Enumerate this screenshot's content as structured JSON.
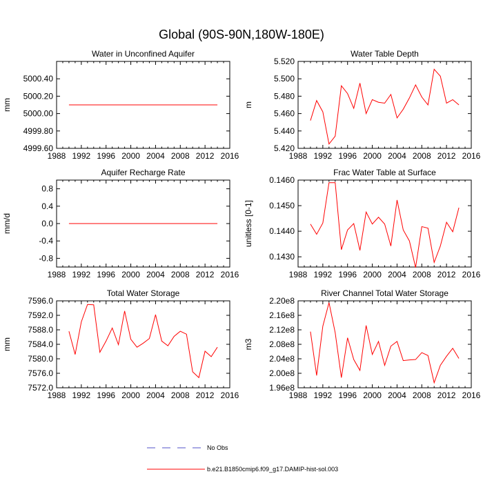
{
  "figure": {
    "title": "Global (90S-90N,180W-180E)"
  },
  "colors": {
    "series_line": "#ff0000",
    "no_obs_line": "#5050c8",
    "axis": "#000000",
    "background": "#ffffff"
  },
  "legend": {
    "entries": [
      {
        "label": "No Obs",
        "color": "#5050c8",
        "dash": true
      },
      {
        "label": "b.e21.B1850cmip6.f09_g17.DAMIP-hist-sol.003",
        "color": "#ff0000",
        "dash": false
      }
    ]
  },
  "chart_data": [
    {
      "type": "line",
      "title": "Water in Unconfined Aquifer",
      "xlabel": "",
      "ylabel": "mm",
      "xlim": [
        1988,
        2016
      ],
      "ylim": [
        4999.6,
        5000.6
      ],
      "xticks": [
        1988,
        1992,
        1996,
        2000,
        2004,
        2008,
        2012,
        2016
      ],
      "yticks": [
        4999.6,
        4999.8,
        5000.0,
        5000.2,
        5000.4
      ],
      "yticklabels": [
        "4999.60",
        "4999.80",
        "5000.00",
        "5000.20",
        "5000.40"
      ],
      "x": [
        1990,
        1991,
        1992,
        1993,
        1994,
        1995,
        1996,
        1997,
        1998,
        1999,
        2000,
        2001,
        2002,
        2003,
        2004,
        2005,
        2006,
        2007,
        2008,
        2009,
        2010,
        2011,
        2012,
        2013,
        2014
      ],
      "series": [
        {
          "values": [
            5000.1,
            5000.1,
            5000.1,
            5000.1,
            5000.1,
            5000.1,
            5000.1,
            5000.1,
            5000.1,
            5000.1,
            5000.1,
            5000.1,
            5000.1,
            5000.1,
            5000.1,
            5000.1,
            5000.1,
            5000.1,
            5000.1,
            5000.1,
            5000.1,
            5000.1,
            5000.1,
            5000.1,
            5000.1
          ]
        }
      ]
    },
    {
      "type": "line",
      "title": "Water Table Depth",
      "xlabel": "",
      "ylabel": "m",
      "xlim": [
        1988,
        2016
      ],
      "ylim": [
        5.42,
        5.52
      ],
      "xticks": [
        1988,
        1992,
        1996,
        2000,
        2004,
        2008,
        2012,
        2016
      ],
      "yticks": [
        5.42,
        5.44,
        5.46,
        5.48,
        5.5,
        5.52
      ],
      "yticklabels": [
        "5.420",
        "5.440",
        "5.460",
        "5.480",
        "5.500",
        "5.520"
      ],
      "x": [
        1990,
        1991,
        1992,
        1993,
        1994,
        1995,
        1996,
        1997,
        1998,
        1999,
        2000,
        2001,
        2002,
        2003,
        2004,
        2005,
        2006,
        2007,
        2008,
        2009,
        2010,
        2011,
        2012,
        2013,
        2014
      ],
      "series": [
        {
          "values": [
            5.452,
            5.475,
            5.462,
            5.425,
            5.434,
            5.492,
            5.483,
            5.466,
            5.495,
            5.46,
            5.476,
            5.473,
            5.472,
            5.482,
            5.455,
            5.465,
            5.478,
            5.493,
            5.479,
            5.47,
            5.511,
            5.503,
            5.472,
            5.476,
            5.47
          ]
        }
      ]
    },
    {
      "type": "line",
      "title": "Aquifer Recharge Rate",
      "xlabel": "",
      "ylabel": "mm/d",
      "xlim": [
        1988,
        2016
      ],
      "ylim": [
        -1.0,
        1.0
      ],
      "xticks": [
        1988,
        1992,
        1996,
        2000,
        2004,
        2008,
        2012,
        2016
      ],
      "yticks": [
        -0.8,
        -0.4,
        0.0,
        0.4,
        0.8
      ],
      "yticklabels": [
        "-0.8",
        "-0.4",
        "0.0",
        "0.4",
        "0.8"
      ],
      "x": [
        1990,
        1991,
        1992,
        1993,
        1994,
        1995,
        1996,
        1997,
        1998,
        1999,
        2000,
        2001,
        2002,
        2003,
        2004,
        2005,
        2006,
        2007,
        2008,
        2009,
        2010,
        2011,
        2012,
        2013,
        2014
      ],
      "series": [
        {
          "values": [
            0,
            0,
            0,
            0,
            0,
            0,
            0,
            0,
            0,
            0,
            0,
            0,
            0,
            0,
            0,
            0,
            0,
            0,
            0,
            0,
            0,
            0,
            0,
            0,
            0
          ]
        }
      ]
    },
    {
      "type": "line",
      "title": "Frac Water Table at Surface",
      "xlabel": "",
      "ylabel": "unitless [0-1]",
      "xlim": [
        1988,
        2016
      ],
      "ylim": [
        0.1426,
        0.146
      ],
      "xticks": [
        1988,
        1992,
        1996,
        2000,
        2004,
        2008,
        2012,
        2016
      ],
      "yticks": [
        0.143,
        0.144,
        0.145,
        0.146
      ],
      "yticklabels": [
        "0.1430",
        "0.1440",
        "0.1450",
        "0.1460"
      ],
      "x": [
        1990,
        1991,
        1992,
        1993,
        1994,
        1995,
        1996,
        1997,
        1998,
        1999,
        2000,
        2001,
        2002,
        2003,
        2004,
        2005,
        2006,
        2007,
        2008,
        2009,
        2010,
        2011,
        2012,
        2013,
        2014
      ],
      "series": [
        {
          "values": [
            0.14428,
            0.14388,
            0.14432,
            0.1459,
            0.1459,
            0.14328,
            0.14405,
            0.1443,
            0.14325,
            0.14475,
            0.14428,
            0.14455,
            0.14428,
            0.14342,
            0.14522,
            0.14405,
            0.14362,
            0.14258,
            0.14418,
            0.14412,
            0.14278,
            0.14342,
            0.14435,
            0.14398,
            0.14492
          ]
        }
      ]
    },
    {
      "type": "line",
      "title": "Total Water Storage",
      "xlabel": "",
      "ylabel": "mm",
      "xlim": [
        1988,
        2016
      ],
      "ylim": [
        7572.0,
        7596.0
      ],
      "xticks": [
        1988,
        1992,
        1996,
        2000,
        2004,
        2008,
        2012,
        2016
      ],
      "yticks": [
        7572,
        7576,
        7580,
        7584,
        7588,
        7592,
        7596
      ],
      "yticklabels": [
        "7572.0",
        "7576.0",
        "7580.0",
        "7584.0",
        "7588.0",
        "7592.0",
        "7596.0"
      ],
      "x": [
        1990,
        1991,
        1992,
        1993,
        1994,
        1995,
        1996,
        1997,
        1998,
        1999,
        2000,
        2001,
        2002,
        2003,
        2004,
        2005,
        2006,
        2007,
        2008,
        2009,
        2010,
        2011,
        2012,
        2013,
        2014
      ],
      "series": [
        {
          "values": [
            7587.6,
            7581.2,
            7590.2,
            7595.0,
            7594.9,
            7581.8,
            7584.9,
            7588.5,
            7583.9,
            7593.2,
            7585.4,
            7583.2,
            7584.3,
            7585.6,
            7592.2,
            7584.9,
            7583.6,
            7586.2,
            7587.6,
            7586.8,
            7576.4,
            7574.8,
            7582.1,
            7580.6,
            7583.2
          ]
        }
      ]
    },
    {
      "type": "line",
      "title": "River Channel Total Water Storage",
      "xlabel": "",
      "ylabel": "m3",
      "xlim": [
        1988,
        2016
      ],
      "ylim": [
        196000000,
        220000000
      ],
      "xticks": [
        1988,
        1992,
        1996,
        2000,
        2004,
        2008,
        2012,
        2016
      ],
      "yticks": [
        196000000,
        200000000,
        204000000,
        208000000,
        212000000,
        216000000,
        220000000
      ],
      "yticklabels": [
        "1.96e8",
        "2.00e8",
        "2.04e8",
        "2.08e8",
        "2.12e8",
        "2.16e8",
        "2.20e8"
      ],
      "x": [
        1990,
        1991,
        1992,
        1993,
        1994,
        1995,
        1996,
        1997,
        1998,
        1999,
        2000,
        2001,
        2002,
        2003,
        2004,
        2005,
        2006,
        2007,
        2008,
        2009,
        2010,
        2011,
        2012,
        2013,
        2014
      ],
      "series": [
        {
          "values": [
            211500000,
            199400000,
            213000000,
            219500000,
            211200000,
            198800000,
            209800000,
            203800000,
            200800000,
            213200000,
            205200000,
            208800000,
            202200000,
            207500000,
            208800000,
            203500000,
            203700000,
            203800000,
            205700000,
            204900000,
            197400000,
            202200000,
            204700000,
            206900000,
            204100000
          ]
        }
      ]
    }
  ]
}
